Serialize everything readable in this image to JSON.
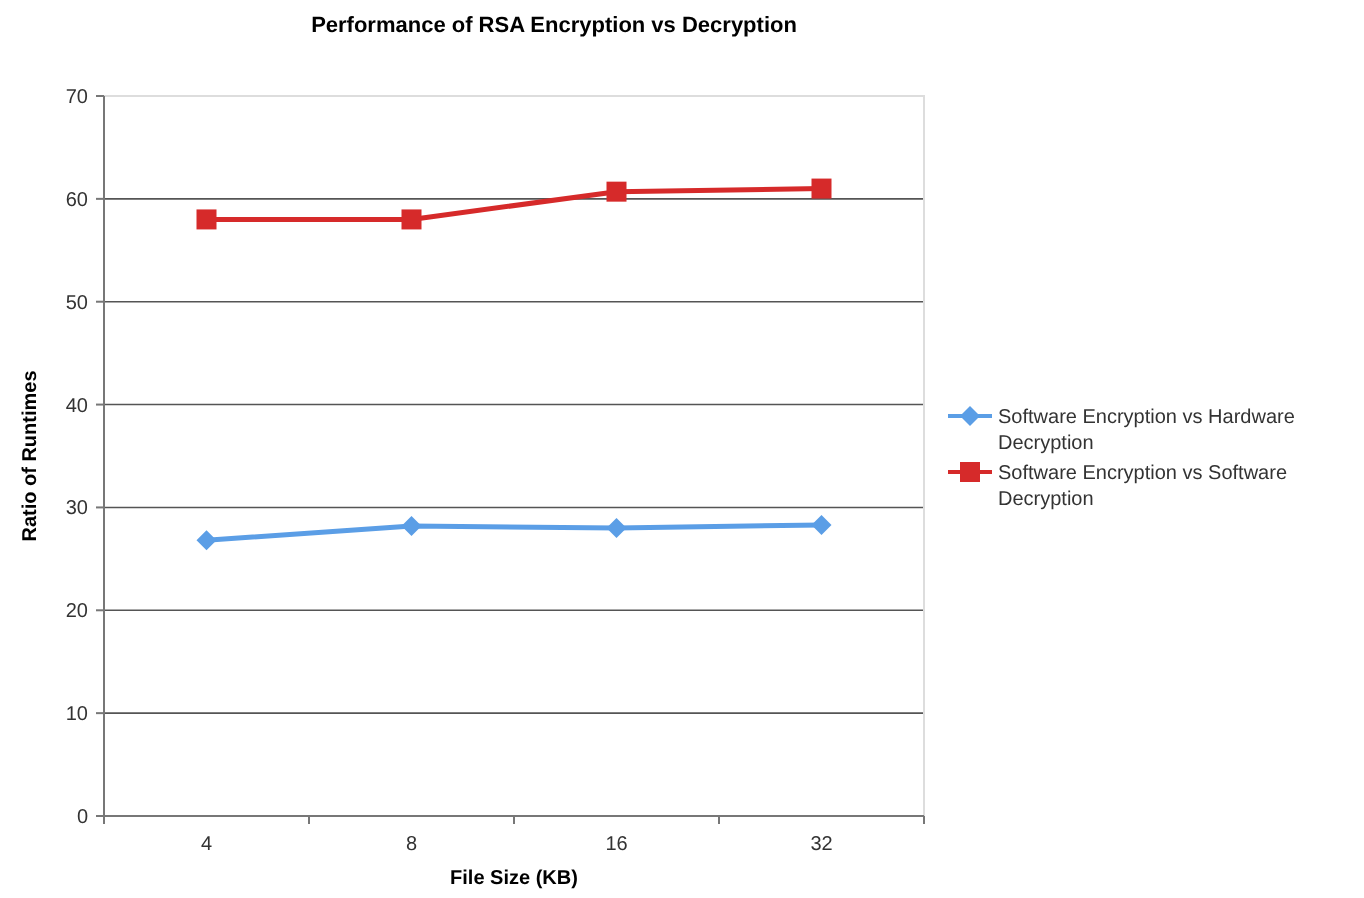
{
  "chart_data": {
    "type": "line",
    "title": "Performance of RSA Encryption vs Decryption",
    "xlabel": "File Size (KB)",
    "ylabel": "Ratio of Runtimes",
    "categories": [
      "4",
      "8",
      "16",
      "32"
    ],
    "series": [
      {
        "name": "Software Encryption vs Hardware Decryption",
        "color": "#5b9ee6",
        "marker": "diamond",
        "values": [
          26.8,
          28.2,
          28.0,
          28.3
        ]
      },
      {
        "name": "Software Encryption vs Software Decryption",
        "color": "#d62a2a",
        "marker": "square",
        "values": [
          58.0,
          58.0,
          60.7,
          61.0
        ]
      }
    ],
    "ylim": [
      0,
      70
    ],
    "yticks": [
      0,
      10,
      20,
      30,
      40,
      50,
      60,
      70
    ],
    "grid": "y",
    "legend": "right",
    "line_style": "solid"
  }
}
